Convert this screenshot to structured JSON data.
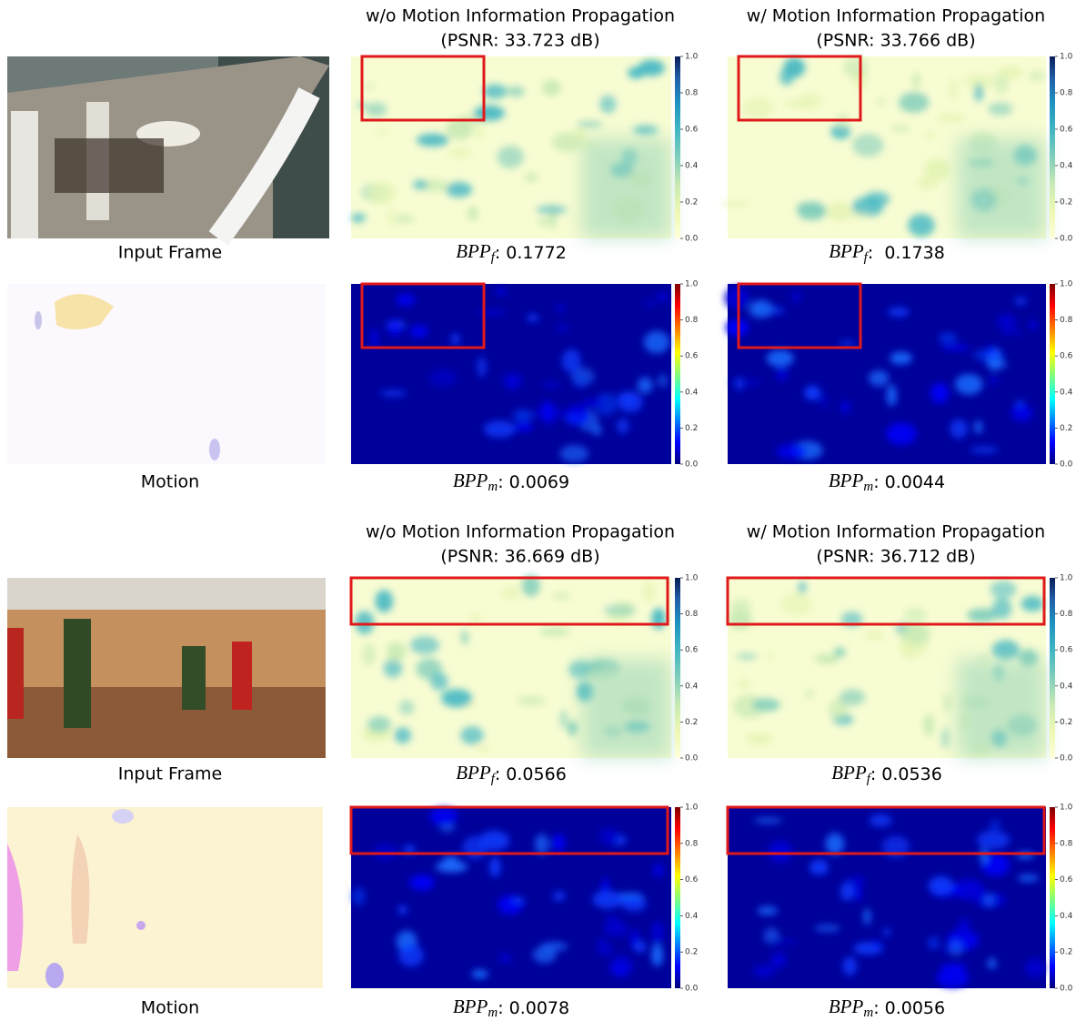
{
  "sections": [
    {
      "columns": [
        {
          "title": "w/o Motion Information Propagation",
          "subtitle": "(PSNR: 33.723 dB)"
        },
        {
          "title": "w/ Motion Information Propagation",
          "subtitle": "(PSNR: 33.766 dB)"
        }
      ],
      "rows": [
        {
          "label": "Input Frame",
          "captions": [
            {
              "base": "BPP",
              "sub": "f",
              "text": ": 0.1772"
            },
            {
              "base": "BPP",
              "sub": "f",
              "text": ":  0.1738"
            }
          ]
        },
        {
          "label": "Motion",
          "captions": [
            {
              "base": "BPP",
              "sub": "m",
              "text": ": 0.0069"
            },
            {
              "base": "BPP",
              "sub": "m",
              "text": ": 0.0044"
            }
          ]
        }
      ]
    },
    {
      "columns": [
        {
          "title": "w/o Motion Information Propagation",
          "subtitle": "(PSNR: 36.669 dB)"
        },
        {
          "title": "w/ Motion Information Propagation",
          "subtitle": "(PSNR: 36.712 dB)"
        }
      ],
      "rows": [
        {
          "label": "Input Frame",
          "captions": [
            {
              "base": "BPP",
              "sub": "f",
              "text": ": 0.0566"
            },
            {
              "base": "BPP",
              "sub": "f",
              "text": ": 0.0536"
            }
          ]
        },
        {
          "label": "Motion",
          "captions": [
            {
              "base": "BPP",
              "sub": "m",
              "text": ": 0.0078"
            },
            {
              "base": "BPP",
              "sub": "m",
              "text": ": 0.0056"
            }
          ]
        }
      ]
    }
  ],
  "colorbar_ticks": [
    "0.0",
    "0.2",
    "0.4",
    "0.6",
    "0.8",
    "1.0"
  ]
}
